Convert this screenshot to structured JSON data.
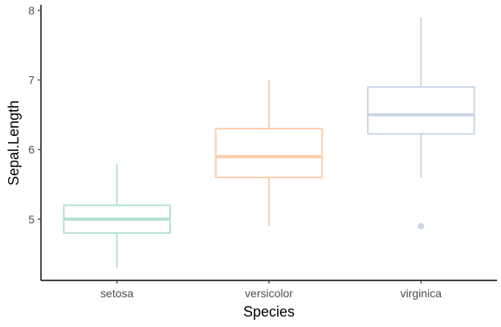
{
  "chart_data": {
    "type": "boxplot",
    "title": "",
    "xlabel": "Species",
    "ylabel": "Sepal.Length",
    "categories": [
      "setosa",
      "versicolor",
      "virginica"
    ],
    "ylim": [
      4.12,
      8.08
    ],
    "yticks": [
      5,
      6,
      7,
      8
    ],
    "ytick_labels": [
      "5",
      "6",
      "7",
      "8"
    ],
    "grid": false,
    "legend": "none",
    "boxes": [
      {
        "category": "setosa",
        "whisker_low": 4.3,
        "q1": 4.8,
        "median": 5.0,
        "q3": 5.2,
        "whisker_high": 5.8,
        "outliers": [],
        "color": "#b3e2cd"
      },
      {
        "category": "versicolor",
        "whisker_low": 4.9,
        "q1": 5.6,
        "median": 5.9,
        "q3": 6.3,
        "whisker_high": 7.0,
        "outliers": [],
        "color": "#fdcdac"
      },
      {
        "category": "virginica",
        "whisker_low": 5.6,
        "q1": 6.225,
        "median": 6.5,
        "q3": 6.9,
        "whisker_high": 7.9,
        "outliers": [
          4.9
        ],
        "color": "#cbd5e8"
      }
    ]
  }
}
